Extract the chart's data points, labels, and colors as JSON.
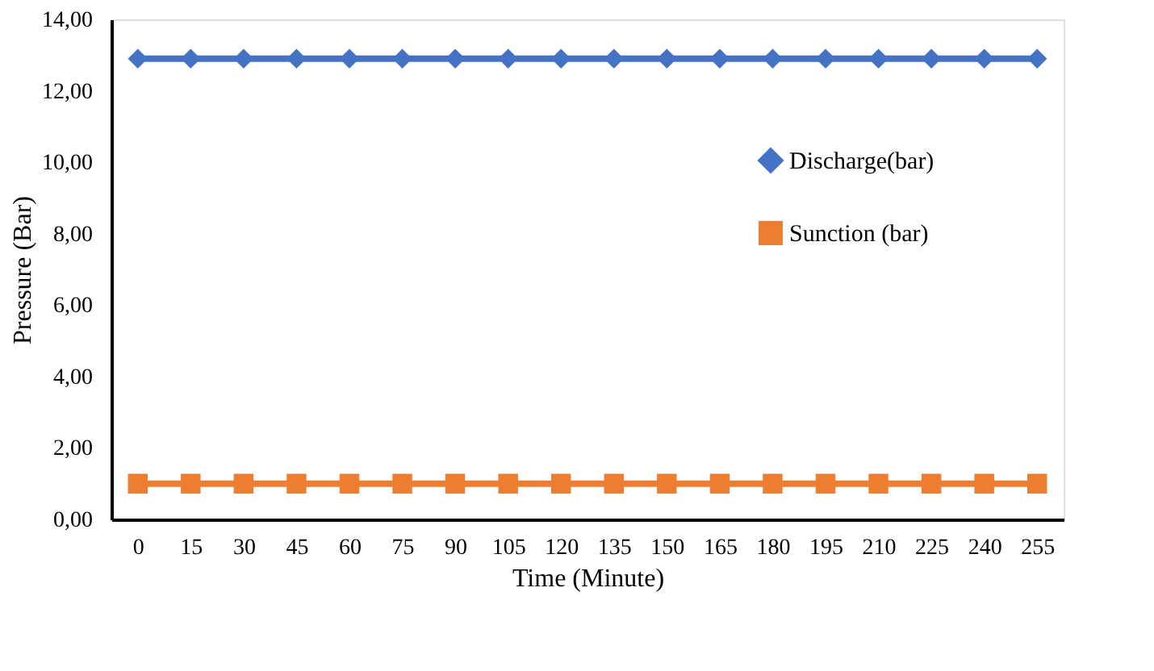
{
  "chart_data": {
    "type": "line",
    "xlabel": "Time (Minute)",
    "ylabel": "Pressure (Bar)",
    "categories": [
      "0",
      "15",
      "30",
      "45",
      "60",
      "75",
      "90",
      "105",
      "120",
      "135",
      "150",
      "165",
      "180",
      "195",
      "210",
      "225",
      "240",
      "255"
    ],
    "series": [
      {
        "name": "Discharge(bar)",
        "color": "#4472c4",
        "marker": "diamond",
        "values": [
          12.9,
          12.9,
          12.9,
          12.9,
          12.9,
          12.9,
          12.9,
          12.9,
          12.9,
          12.9,
          12.9,
          12.9,
          12.9,
          12.9,
          12.9,
          12.9,
          12.9,
          12.9
        ]
      },
      {
        "name": "Sunction (bar)",
        "color": "#ed7d31",
        "marker": "square",
        "values": [
          1.0,
          1.0,
          1.0,
          1.0,
          1.0,
          1.0,
          1.0,
          1.0,
          1.0,
          1.0,
          1.0,
          1.0,
          1.0,
          1.0,
          1.0,
          1.0,
          1.0,
          1.0
        ]
      }
    ],
    "ylim": [
      0,
      14
    ],
    "yticks": [
      {
        "value": 0,
        "label": "0,00"
      },
      {
        "value": 2,
        "label": "2,00"
      },
      {
        "value": 4,
        "label": "4,00"
      },
      {
        "value": 6,
        "label": "6,00"
      },
      {
        "value": 8,
        "label": "8,00"
      },
      {
        "value": 10,
        "label": "10,00"
      },
      {
        "value": 12,
        "label": "12,00"
      },
      {
        "value": 14,
        "label": "14,00"
      }
    ],
    "grid": false,
    "legend": "top right",
    "line_style": "solid"
  }
}
